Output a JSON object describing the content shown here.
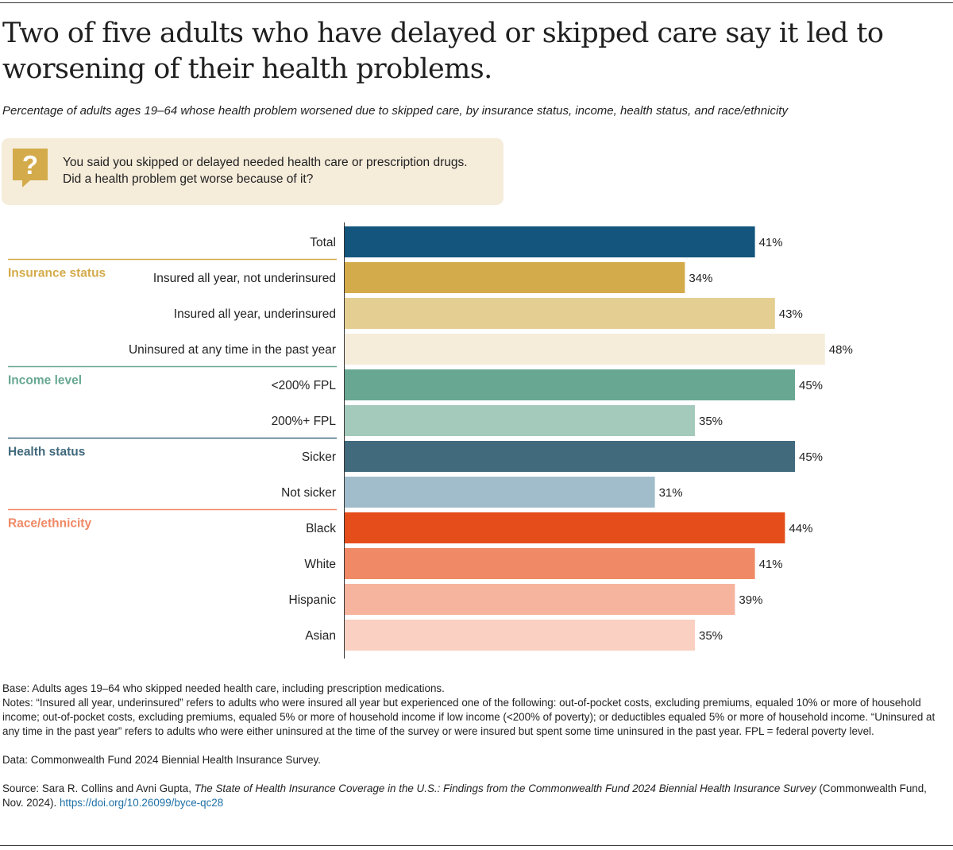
{
  "title": "Two of five adults who have delayed or skipped care say it led to worsening of their health problems.",
  "subtitle": "Percentage of adults ages 19–64 whose health problem worsened due to skipped care, by insurance status, income, health status, and race/ethnicity",
  "question": {
    "icon": "question-speech-bubble-icon",
    "icon_glyph": "?",
    "line1": "You said you skipped or delayed needed health care or prescription drugs.",
    "line2": "Did a health problem get worse because of it?"
  },
  "chart_data": {
    "type": "bar",
    "orientation": "horizontal",
    "xlim": [
      0,
      50
    ],
    "value_suffix": "%",
    "rows": [
      {
        "label": "Total",
        "value": 41,
        "color": "#13557c",
        "group": null
      },
      {
        "label": "Insured all year, not underinsured",
        "value": 34,
        "color": "#d4ab4b",
        "group": "Insurance status"
      },
      {
        "label": "Insured all year, underinsured",
        "value": 43,
        "color": "#e5ce92",
        "group": "Insurance status"
      },
      {
        "label": "Uninsured at any time in the past year",
        "value": 48,
        "color": "#f5ecda",
        "group": "Insurance status"
      },
      {
        "label": "<200% FPL",
        "value": 45,
        "color": "#68a893",
        "group": "Income level"
      },
      {
        "label": "200%+ FPL",
        "value": 35,
        "color": "#a4cabc",
        "group": "Income level"
      },
      {
        "label": "Sicker",
        "value": 45,
        "color": "#426a7d",
        "group": "Health status"
      },
      {
        "label": "Not sicker",
        "value": 31,
        "color": "#a1bdcc",
        "group": "Health status"
      },
      {
        "label": "Black",
        "value": 44,
        "color": "#e54d1a",
        "group": "Race/ethnicity"
      },
      {
        "label": "White",
        "value": 41,
        "color": "#f08966",
        "group": "Race/ethnicity"
      },
      {
        "label": "Hispanic",
        "value": 39,
        "color": "#f6b49e",
        "group": "Race/ethnicity"
      },
      {
        "label": "Asian",
        "value": 35,
        "color": "#f9d0c2",
        "group": "Race/ethnicity"
      }
    ],
    "groups": [
      {
        "label": "Insurance status",
        "start_row": 1,
        "color": "#d4ab4b"
      },
      {
        "label": "Income level",
        "start_row": 4,
        "color": "#68a893"
      },
      {
        "label": "Health status",
        "start_row": 6,
        "color": "#426a7d"
      },
      {
        "label": "Race/ethnicity",
        "start_row": 8,
        "color": "#f08966"
      }
    ]
  },
  "footer": {
    "base": "Base: Adults ages 19–64 who skipped needed health care, including prescription medications.",
    "notes": "Notes: “Insured all year, underinsured” refers to adults who were insured all year but experienced one of the following: out-of-pocket costs, excluding premiums, equaled 10% or more of household income; out-of-pocket costs, excluding premiums, equaled 5% or more of household income if low income (<200% of poverty); or deductibles equaled 5% or more of household income. “Uninsured at any time in the past year” refers to adults who were either uninsured at the time of the survey or were insured but spent some time uninsured in the past year. FPL = federal poverty level.",
    "data": "Data: Commonwealth Fund 2024 Biennial Health Insurance Survey.",
    "source_prefix": "Source: Sara R. Collins and Avni Gupta, ",
    "source_title": "The State of Health Insurance Coverage in the U.S.: Findings from the Commonwealth Fund 2024 Biennial Health Insurance Survey",
    "source_suffix": " (Commonwealth Fund, Nov. 2024). ",
    "source_link": "https://doi.org/10.26099/byce-qc28"
  }
}
